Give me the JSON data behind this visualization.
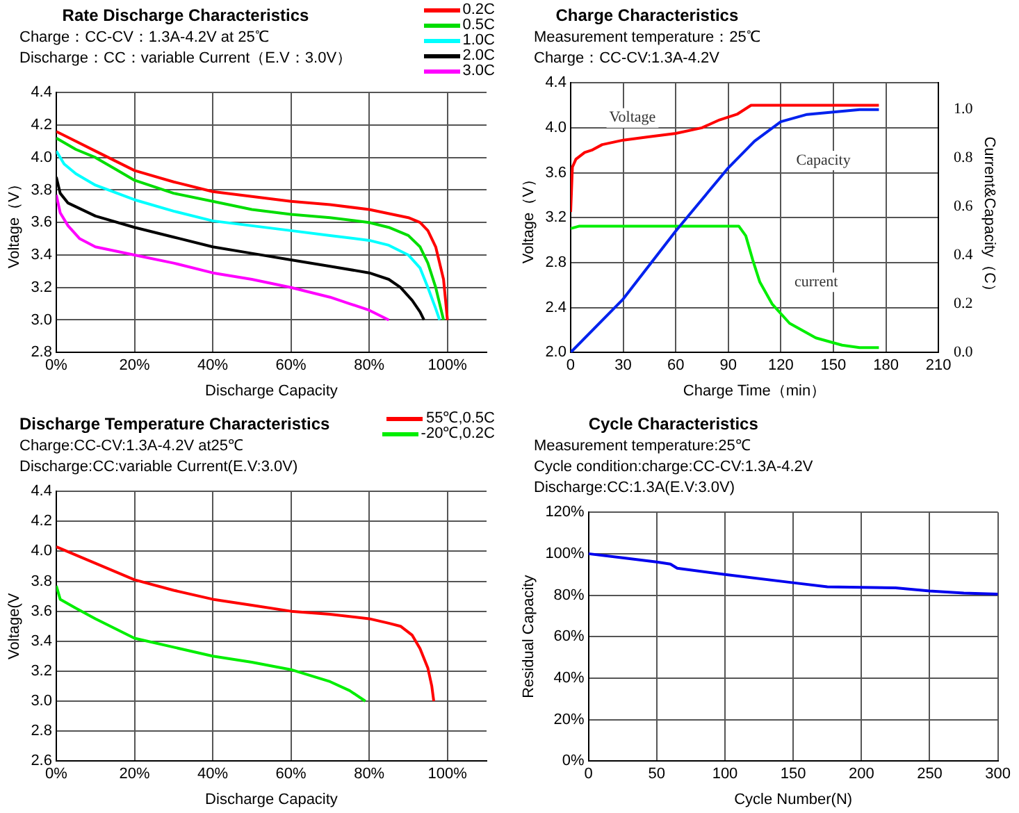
{
  "chart_data": [
    {
      "type": "line",
      "title": "Rate Discharge Characteristics",
      "subtitle": "Charge：CC-CV：1.3A-4.2V at 25℃\nDischarge：CC：variable Current（E.V：3.0V）",
      "xlabel": "Discharge Capacity",
      "ylabel": "Voltage（V）",
      "xlim": [
        0,
        110
      ],
      "xticks": [
        {
          "value": 0,
          "label": "0%"
        },
        {
          "value": 20,
          "label": "20%"
        },
        {
          "value": 40,
          "label": "40%"
        },
        {
          "value": 60,
          "label": "60%"
        },
        {
          "value": 80,
          "label": "80%"
        },
        {
          "value": 100,
          "label": "100%"
        }
      ],
      "ylim": [
        2.8,
        4.4
      ],
      "yticks": [
        2.8,
        {
          "value": 3.0,
          "label": "3.0"
        },
        3.2,
        3.4,
        3.6,
        3.8,
        {
          "value": 4.0,
          "label": "4.0"
        },
        4.2,
        4.4
      ],
      "grid": true,
      "legend": "top right",
      "marker": "none",
      "line_style": "solid",
      "series": [
        {
          "name": "0.2C",
          "color": "#ff0000",
          "x": [
            0,
            5,
            10,
            15,
            20,
            30,
            40,
            50,
            60,
            70,
            80,
            90,
            93,
            95,
            97,
            99,
            100
          ],
          "values": [
            4.16,
            4.1,
            4.04,
            3.98,
            3.92,
            3.85,
            3.79,
            3.76,
            3.73,
            3.71,
            3.68,
            3.63,
            3.6,
            3.55,
            3.45,
            3.25,
            3.0
          ]
        },
        {
          "name": "0.5C",
          "color": "#00dd00",
          "x": [
            0,
            5,
            10,
            15,
            20,
            30,
            40,
            50,
            60,
            70,
            80,
            85,
            90,
            93,
            95,
            97,
            98,
            99
          ],
          "values": [
            4.12,
            4.05,
            4.0,
            3.93,
            3.86,
            3.78,
            3.73,
            3.68,
            3.65,
            3.63,
            3.6,
            3.57,
            3.52,
            3.45,
            3.35,
            3.2,
            3.1,
            3.0
          ]
        },
        {
          "name": "1.0C",
          "color": "#00ffff",
          "x": [
            0,
            2,
            5,
            10,
            20,
            30,
            40,
            50,
            60,
            70,
            80,
            85,
            90,
            93,
            95,
            97,
            98
          ],
          "values": [
            4.04,
            3.96,
            3.9,
            3.83,
            3.74,
            3.67,
            3.61,
            3.58,
            3.55,
            3.52,
            3.49,
            3.46,
            3.4,
            3.32,
            3.2,
            3.07,
            3.0
          ]
        },
        {
          "name": "2.0C",
          "color": "#000000",
          "x": [
            0,
            1,
            3,
            10,
            20,
            30,
            40,
            50,
            60,
            70,
            80,
            85,
            88,
            91,
            93,
            94
          ],
          "values": [
            3.88,
            3.78,
            3.72,
            3.64,
            3.57,
            3.51,
            3.45,
            3.41,
            3.37,
            3.33,
            3.29,
            3.25,
            3.2,
            3.12,
            3.05,
            3.0
          ]
        },
        {
          "name": "3.0C",
          "color": "#ff00ff",
          "x": [
            0,
            1,
            3,
            6,
            10,
            20,
            30,
            40,
            50,
            60,
            70,
            75,
            80,
            85
          ],
          "values": [
            3.77,
            3.66,
            3.58,
            3.5,
            3.45,
            3.4,
            3.35,
            3.29,
            3.25,
            3.2,
            3.14,
            3.1,
            3.06,
            3.0
          ]
        }
      ]
    },
    {
      "type": "line",
      "title": "Charge Characteristics",
      "subtitle": "Measurement temperature：25℃\nCharge：CC-CV:1.3A-4.2V",
      "xlabel": "Charge Time（min）",
      "ylabel": "Voltage（V）",
      "y2label": "Current&Capacity（C）",
      "xlim": [
        0,
        210
      ],
      "xticks": [
        0,
        30,
        60,
        90,
        120,
        150,
        180,
        210
      ],
      "ylim": [
        2.0,
        4.4
      ],
      "yticks": [
        {
          "value": 2.0,
          "label": "2.0"
        },
        2.4,
        2.8,
        3.2,
        3.6,
        {
          "value": 4.0,
          "label": "4.0"
        },
        4.4
      ],
      "y2lim": [
        0,
        1.11
      ],
      "y2ticks": [
        {
          "value": 0,
          "label": "0.0"
        },
        0.2,
        0.4,
        0.6,
        0.8,
        {
          "value": 1.0,
          "label": "1.0"
        }
      ],
      "grid": true,
      "legend": false,
      "marker": "none",
      "line_style": "solid",
      "series": [
        {
          "name": "Voltage",
          "color": "#ff0000",
          "x": [
            0,
            1,
            3,
            8,
            12,
            18,
            30,
            45,
            60,
            75,
            85,
            95,
            103,
            176
          ],
          "values": [
            3.25,
            3.65,
            3.72,
            3.78,
            3.8,
            3.85,
            3.89,
            3.92,
            3.95,
            4.0,
            4.07,
            4.12,
            4.2,
            4.2
          ]
        },
        {
          "name": "Capacity",
          "color": "#0022ee",
          "axis": "y2",
          "x": [
            0,
            30,
            60,
            90,
            105,
            120,
            135,
            150,
            165,
            176
          ],
          "values": [
            0,
            0.22,
            0.5,
            0.76,
            0.87,
            0.95,
            0.98,
            0.99,
            1.0,
            1.0
          ]
        },
        {
          "name": "current",
          "color": "#00ee00",
          "axis": "y2",
          "x": [
            0,
            5,
            96,
            100,
            104,
            108,
            115,
            125,
            140,
            155,
            165,
            176
          ],
          "values": [
            0.51,
            0.52,
            0.52,
            0.48,
            0.38,
            0.29,
            0.2,
            0.12,
            0.06,
            0.03,
            0.02,
            0.02
          ]
        }
      ]
    },
    {
      "type": "line",
      "title": "Discharge Temperature Characteristics",
      "subtitle": "Charge:CC-CV:1.3A-4.2V  at25℃\nDischarge:CC:variable Current(E.V:3.0V)",
      "xlabel": "Discharge Capacity",
      "ylabel": "Voltage(V",
      "xlim": [
        0,
        110
      ],
      "xticks": [
        {
          "value": 0,
          "label": "0%"
        },
        {
          "value": 20,
          "label": "20%"
        },
        {
          "value": 40,
          "label": "40%"
        },
        {
          "value": 60,
          "label": "60%"
        },
        {
          "value": 80,
          "label": "80%"
        },
        {
          "value": 100,
          "label": "100%"
        }
      ],
      "ylim": [
        2.6,
        4.4
      ],
      "yticks": [
        2.6,
        2.8,
        {
          "value": 3.0,
          "label": "3.0"
        },
        3.2,
        3.4,
        3.6,
        3.8,
        {
          "value": 4.0,
          "label": "4.0"
        },
        4.2,
        4.4
      ],
      "grid": true,
      "legend": "top right",
      "marker": "none",
      "line_style": "solid",
      "series": [
        {
          "name": "55℃,0.5C",
          "color": "#ff0000",
          "x": [
            0,
            10,
            20,
            30,
            40,
            50,
            60,
            70,
            80,
            85,
            88,
            91,
            93,
            95,
            96,
            96.5
          ],
          "values": [
            4.03,
            3.92,
            3.81,
            3.74,
            3.68,
            3.64,
            3.6,
            3.58,
            3.55,
            3.52,
            3.5,
            3.44,
            3.35,
            3.22,
            3.1,
            3.0
          ]
        },
        {
          "name": "-20℃,0.2C",
          "color": "#00ee00",
          "x": [
            0,
            1,
            5,
            10,
            20,
            30,
            40,
            50,
            60,
            70,
            75,
            79
          ],
          "values": [
            3.77,
            3.68,
            3.62,
            3.55,
            3.42,
            3.36,
            3.3,
            3.26,
            3.21,
            3.13,
            3.07,
            3.0
          ]
        }
      ]
    },
    {
      "type": "line",
      "title": "Cycle Characteristics",
      "subtitle": "Measurement temperature:25℃\nCycle condition:charge:CC-CV:1.3A-4.2V\nDischarge:CC:1.3A(E.V:3.0V)",
      "xlabel": "Cycle Number(N)",
      "ylabel": "Residual Capacity",
      "xlim": [
        0,
        300
      ],
      "xticks": [
        0,
        50,
        100,
        150,
        200,
        250,
        300
      ],
      "ylim": [
        0,
        120
      ],
      "yticks": [
        {
          "value": 0,
          "label": "0%"
        },
        {
          "value": 20,
          "label": "20%"
        },
        {
          "value": 40,
          "label": "40%"
        },
        {
          "value": 60,
          "label": "60%"
        },
        {
          "value": 80,
          "label": "80%"
        },
        {
          "value": 100,
          "label": "100%"
        },
        {
          "value": 120,
          "label": "120%"
        }
      ],
      "grid": true,
      "legend": false,
      "marker": "none",
      "line_style": "solid",
      "series": [
        {
          "color": "#0000ee",
          "x": [
            0,
            25,
            50,
            60,
            65,
            100,
            150,
            175,
            225,
            250,
            275,
            300
          ],
          "values": [
            100,
            98,
            96,
            95,
            93,
            90,
            86,
            84,
            83.5,
            82,
            81,
            80.5
          ]
        }
      ]
    }
  ]
}
